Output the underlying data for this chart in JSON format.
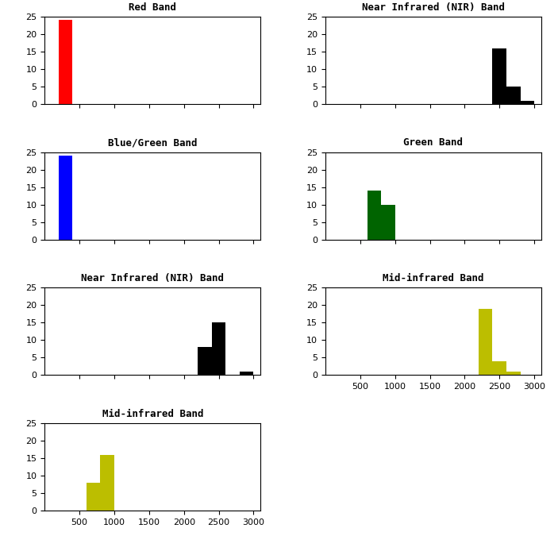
{
  "subplots": [
    {
      "title": "Red Band",
      "color": "#ff0000",
      "bin_edges": [
        200,
        400,
        600,
        800,
        1000,
        1200,
        1400,
        1600,
        1800,
        2000,
        2200,
        2400,
        2600,
        2800,
        3000
      ],
      "counts": [
        24,
        0,
        0,
        0,
        0,
        0,
        0,
        0,
        0,
        0,
        0,
        0,
        0,
        0
      ],
      "row": 0,
      "col": 0,
      "show_xticklabels": false
    },
    {
      "title": "Near Infrared (NIR) Band",
      "color": "#000000",
      "bin_edges": [
        200,
        400,
        600,
        800,
        1000,
        1200,
        1400,
        1600,
        1800,
        2000,
        2200,
        2400,
        2600,
        2800,
        3000
      ],
      "counts": [
        0,
        0,
        0,
        0,
        0,
        0,
        0,
        0,
        0,
        0,
        0,
        16,
        5,
        1
      ],
      "row": 0,
      "col": 1,
      "show_xticklabels": false
    },
    {
      "title": "Blue/Green Band",
      "color": "#0000ff",
      "bin_edges": [
        200,
        400,
        600,
        800,
        1000,
        1200,
        1400,
        1600,
        1800,
        2000,
        2200,
        2400,
        2600,
        2800,
        3000
      ],
      "counts": [
        24,
        0,
        0,
        0,
        0,
        0,
        0,
        0,
        0,
        0,
        0,
        0,
        0,
        0
      ],
      "row": 1,
      "col": 0,
      "show_xticklabels": false
    },
    {
      "title": "Green Band",
      "color": "#006400",
      "bin_edges": [
        200,
        400,
        600,
        800,
        1000,
        1200,
        1400,
        1600,
        1800,
        2000,
        2200,
        2400,
        2600,
        2800,
        3000
      ],
      "counts": [
        0,
        0,
        14,
        10,
        0,
        0,
        0,
        0,
        0,
        0,
        0,
        0,
        0,
        0
      ],
      "row": 1,
      "col": 1,
      "show_xticklabels": false
    },
    {
      "title": "Near Infrared (NIR) Band",
      "color": "#000000",
      "bin_edges": [
        200,
        400,
        600,
        800,
        1000,
        1200,
        1400,
        1600,
        1800,
        2000,
        2200,
        2400,
        2600,
        2800,
        3000
      ],
      "counts": [
        0,
        0,
        0,
        0,
        0,
        0,
        0,
        0,
        0,
        0,
        8,
        15,
        0,
        1
      ],
      "row": 2,
      "col": 0,
      "show_xticklabels": false
    },
    {
      "title": "Mid-infrared Band",
      "color": "#bcbe00",
      "bin_edges": [
        200,
        400,
        600,
        800,
        1000,
        1200,
        1400,
        1600,
        1800,
        2000,
        2200,
        2400,
        2600,
        2800,
        3000
      ],
      "counts": [
        0,
        0,
        0,
        0,
        0,
        0,
        0,
        0,
        0,
        0,
        19,
        4,
        1,
        0
      ],
      "row": 2,
      "col": 1,
      "show_xticklabels": true
    },
    {
      "title": "Mid-infrared Band",
      "color": "#bcbe00",
      "bin_edges": [
        200,
        400,
        600,
        800,
        1000,
        1200,
        1400,
        1600,
        1800,
        2000,
        2200,
        2400,
        2600,
        2800,
        3000
      ],
      "counts": [
        0,
        0,
        8,
        16,
        0,
        0,
        0,
        0,
        0,
        0,
        0,
        0,
        0,
        0
      ],
      "row": 3,
      "col": 0,
      "show_xticklabels": true
    }
  ],
  "nrows": 4,
  "ncols": 2,
  "xlim": [
    0,
    3100
  ],
  "ylim": [
    0,
    25
  ],
  "xticks": [
    500,
    1000,
    1500,
    2000,
    2500,
    3000
  ],
  "yticks": [
    0,
    5,
    10,
    15,
    20,
    25
  ],
  "figsize": [
    7.03,
    6.99
  ],
  "dpi": 100,
  "title_fontsize": 9,
  "tick_fontsize": 8
}
